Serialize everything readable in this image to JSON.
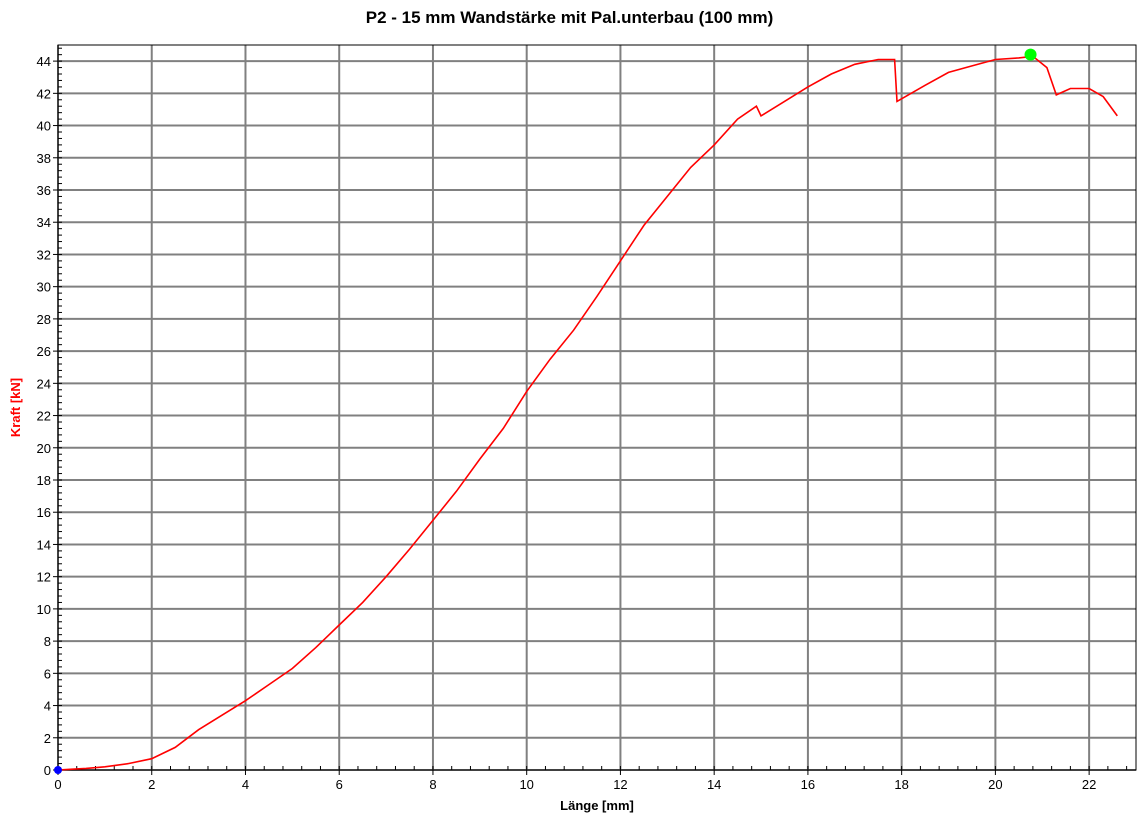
{
  "chart_data": {
    "type": "line",
    "title": "P2 - 15 mm Wandstärke mit Pal.unterbau (100 mm)",
    "xlabel": "Länge [mm]",
    "ylabel": "Kraft [kN]",
    "xlim": [
      0,
      23
    ],
    "ylim": [
      0,
      45
    ],
    "xticks": [
      0,
      2,
      4,
      6,
      8,
      10,
      12,
      14,
      16,
      18,
      20,
      22
    ],
    "yticks": [
      0,
      2,
      4,
      6,
      8,
      10,
      12,
      14,
      16,
      18,
      20,
      22,
      24,
      26,
      28,
      30,
      32,
      34,
      36,
      38,
      40,
      42,
      44
    ],
    "grid": true,
    "colors": {
      "series": "#ff0000",
      "ylabel": "#ff0000",
      "start_marker": "#0000ff",
      "max_marker": "#00ff00",
      "grid": "#808080"
    },
    "series": [
      {
        "x": [
          0,
          0.3,
          0.6,
          1.0,
          1.5,
          2.0,
          2.5,
          3.0,
          3.5,
          4.0,
          4.5,
          5.0,
          5.5,
          6.0,
          6.5,
          7.0,
          7.5,
          8.0,
          8.5,
          9.0,
          9.5,
          10.0,
          10.5,
          11.0,
          11.5,
          12.0,
          12.5,
          13.0,
          13.5,
          14.0,
          14.5,
          14.9,
          15.0,
          15.5,
          16.0,
          16.5,
          17.0,
          17.5,
          17.85,
          17.9,
          18.5,
          19.0,
          19.5,
          20.0,
          20.5,
          20.8,
          21.1,
          21.3,
          21.6,
          22.0,
          22.3,
          22.6
        ],
        "y": [
          0,
          0.05,
          0.1,
          0.2,
          0.4,
          0.7,
          1.4,
          2.5,
          3.4,
          4.3,
          5.3,
          6.3,
          7.6,
          9.0,
          10.4,
          12.0,
          13.7,
          15.5,
          17.3,
          19.3,
          21.2,
          23.5,
          25.5,
          27.3,
          29.4,
          31.6,
          33.8,
          35.6,
          37.4,
          38.8,
          40.4,
          41.2,
          40.6,
          41.5,
          42.4,
          43.2,
          43.8,
          44.1,
          44.1,
          41.5,
          42.5,
          43.3,
          43.7,
          44.1,
          44.2,
          44.3,
          43.6,
          41.9,
          42.3,
          42.3,
          41.8,
          40.6
        ]
      }
    ],
    "markers": [
      {
        "x": 0,
        "y": 0
      },
      {
        "x": 20.75,
        "y": 44.4
      }
    ]
  }
}
